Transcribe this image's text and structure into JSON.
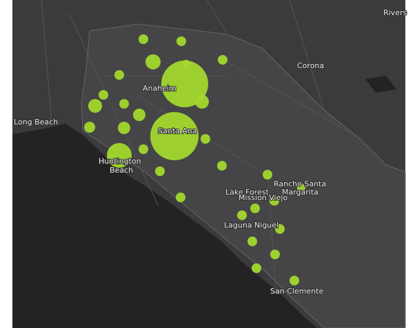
{
  "places": [
    "Rivers",
    "Corona",
    "Anaheim",
    "Long Beach",
    "Santa Ana",
    "Huntington",
    "Beach",
    "Rancho Santa",
    "Margarita",
    "Lake Forest",
    "Mission Viejo",
    "Laguna Niguel",
    "San Clemente"
  ]
}
